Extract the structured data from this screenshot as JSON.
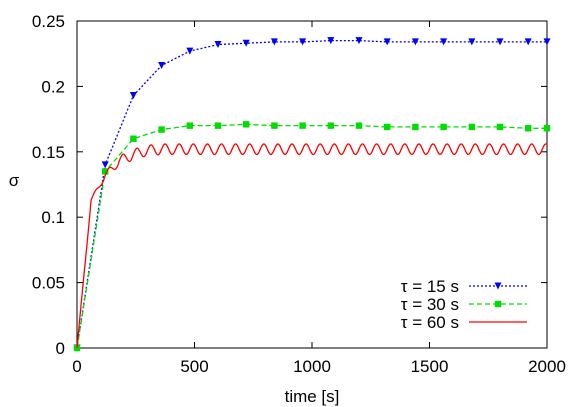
{
  "chart_data": {
    "type": "line",
    "title": "",
    "xlabel": "time [s]",
    "ylabel": "σ",
    "xlim": [
      0,
      2000
    ],
    "ylim": [
      0,
      0.25
    ],
    "x_ticks": [
      0,
      500,
      1000,
      1500,
      2000
    ],
    "x_tick_labels": [
      "0",
      "500",
      "1000",
      "1500",
      "2000"
    ],
    "y_ticks": [
      0,
      0.05,
      0.1,
      0.15,
      0.2,
      0.25
    ],
    "y_tick_labels": [
      "0",
      "0.05",
      "0.1",
      "0.15",
      "0.2",
      "0.25"
    ],
    "grid": false,
    "legend_position": "bottom-right",
    "series": [
      {
        "name": "τ = 15 s",
        "color": "#0000ff",
        "line_style": "dotted",
        "marker": "triangle-down",
        "x": [
          0,
          120,
          240,
          360,
          480,
          600,
          720,
          840,
          960,
          1080,
          1200,
          1320,
          1440,
          1560,
          1680,
          1800,
          1920,
          2000
        ],
        "y": [
          0,
          0.14,
          0.193,
          0.216,
          0.227,
          0.232,
          0.233,
          0.234,
          0.234,
          0.235,
          0.235,
          0.234,
          0.234,
          0.234,
          0.234,
          0.234,
          0.234,
          0.234
        ]
      },
      {
        "name": "τ = 30 s",
        "color": "#00dd00",
        "line_style": "dashed",
        "marker": "square",
        "x": [
          0,
          120,
          240,
          360,
          480,
          600,
          720,
          840,
          960,
          1080,
          1200,
          1320,
          1440,
          1560,
          1680,
          1800,
          1920,
          2000
        ],
        "y": [
          0,
          0.135,
          0.16,
          0.167,
          0.17,
          0.17,
          0.171,
          0.17,
          0.17,
          0.17,
          0.17,
          0.169,
          0.169,
          0.169,
          0.169,
          0.169,
          0.168,
          0.168
        ]
      },
      {
        "name": "τ = 60 s",
        "color": "#ff0000",
        "line_style": "solid",
        "marker": "none",
        "x": [
          0,
          60,
          120,
          180,
          240,
          300,
          360,
          420,
          480,
          540,
          600,
          700,
          800,
          900,
          1000,
          1200,
          1400,
          1600,
          1800,
          2000
        ],
        "y": [
          0,
          0.113,
          0.132,
          0.143,
          0.148,
          0.151,
          0.152,
          0.152,
          0.152,
          0.152,
          0.152,
          0.152,
          0.152,
          0.152,
          0.152,
          0.152,
          0.152,
          0.152,
          0.152,
          0.152
        ],
        "oscillation_amplitude": 0.004,
        "oscillation_period": 60
      }
    ]
  }
}
